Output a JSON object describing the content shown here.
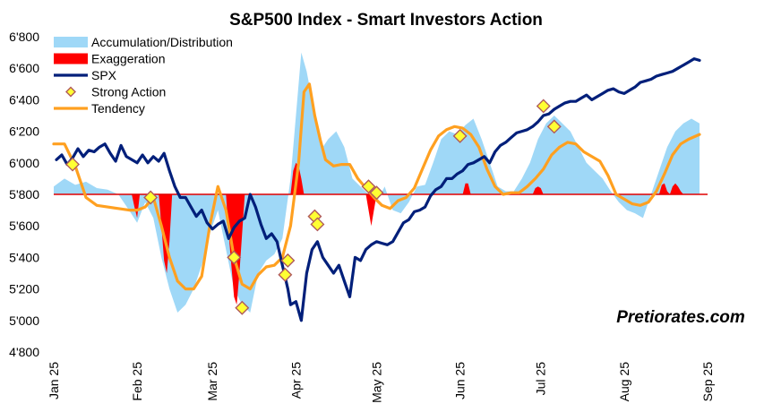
{
  "chart_data": {
    "type": "line",
    "title": "S&P500 Index - Smart Investors Action",
    "ylim": [
      4800,
      6800
    ],
    "y_ticks": [
      "4'800",
      "5'000",
      "5'200",
      "5'400",
      "5'600",
      "5'800",
      "6'000",
      "6'200",
      "6'400",
      "6'600",
      "6'800"
    ],
    "y_tick_values": [
      4800,
      5000,
      5200,
      5400,
      5600,
      5800,
      6000,
      6200,
      6400,
      6600,
      6800
    ],
    "x_ticks": [
      "Jan 25",
      "Feb 25",
      "Mar 25",
      "Apr 25",
      "May 25",
      "Jun 25",
      "Jul 25",
      "Aug 25",
      "Sep 25"
    ],
    "x_tick_days": [
      0,
      31,
      59,
      90,
      120,
      151,
      181,
      212,
      243
    ],
    "x_domain_days": [
      0,
      243
    ],
    "reference_level": 5800,
    "watermark": "Pretiorates.com",
    "colors": {
      "accumulation": "#9fd8f7",
      "exaggeration": "#ff0000",
      "spx": "#001f7a",
      "tendency": "#ffa020",
      "strong_action_fill": "#ffff33",
      "strong_action_stroke": "#b05a5a",
      "reference_line": "#e00000"
    },
    "legend": [
      {
        "key": "accumulation",
        "label": "Accumulation/Distribution"
      },
      {
        "key": "exaggeration",
        "label": "Exaggeration"
      },
      {
        "key": "spx",
        "label": "SPX"
      },
      {
        "key": "strong_action",
        "label": "Strong Action"
      },
      {
        "key": "tendency",
        "label": "Tendency"
      }
    ],
    "series": [
      {
        "name": "SPX",
        "x": [
          1,
          3,
          5,
          7,
          9,
          11,
          13,
          15,
          17,
          19,
          21,
          23,
          25,
          27,
          29,
          31,
          33,
          35,
          37,
          39,
          41,
          43,
          45,
          47,
          49,
          51,
          53,
          55,
          57,
          59,
          61,
          63,
          65,
          67,
          69,
          70,
          71,
          73,
          75,
          77,
          79,
          81,
          83,
          85,
          87,
          88,
          90,
          92,
          94,
          96,
          98,
          100,
          102,
          104,
          106,
          108,
          110,
          112,
          114,
          116,
          118,
          120,
          122,
          124,
          126,
          128,
          130,
          132,
          134,
          136,
          138,
          140,
          142,
          144,
          146,
          148,
          150,
          152,
          154,
          156,
          158,
          160,
          162,
          164,
          166,
          168,
          170,
          172,
          174,
          176,
          178,
          180,
          182,
          184,
          186,
          188,
          190,
          192,
          194,
          196,
          198,
          200,
          202,
          204,
          206,
          208,
          210,
          212,
          214,
          216,
          218,
          220,
          222,
          224,
          226,
          228,
          230,
          232,
          234,
          236,
          238,
          240
        ],
        "values": [
          6020,
          6050,
          5990,
          6030,
          6090,
          6040,
          6080,
          6070,
          6100,
          6120,
          6060,
          6010,
          6110,
          6040,
          6020,
          6000,
          6050,
          6000,
          6040,
          6010,
          6060,
          5950,
          5850,
          5780,
          5780,
          5720,
          5660,
          5700,
          5620,
          5580,
          5610,
          5630,
          5520,
          5590,
          5630,
          5640,
          5650,
          5800,
          5720,
          5610,
          5520,
          5550,
          5500,
          5350,
          5200,
          5100,
          5120,
          5000,
          5300,
          5450,
          5500,
          5400,
          5350,
          5300,
          5350,
          5250,
          5150,
          5400,
          5380,
          5450,
          5480,
          5500,
          5490,
          5480,
          5500,
          5560,
          5620,
          5640,
          5690,
          5700,
          5720,
          5790,
          5830,
          5850,
          5900,
          5900,
          5930,
          5950,
          5990,
          6000,
          6020,
          6040,
          6000,
          6070,
          6110,
          6130,
          6160,
          6190,
          6200,
          6210,
          6230,
          6260,
          6300,
          6310,
          6340,
          6360,
          6380,
          6390,
          6390,
          6410,
          6430,
          6400,
          6420,
          6440,
          6460,
          6470,
          6450,
          6440,
          6460,
          6480,
          6510,
          6520,
          6530,
          6550,
          6560,
          6570,
          6580,
          6600,
          6620,
          6640,
          6660,
          6650
        ]
      },
      {
        "name": "Tendency",
        "x": [
          0,
          4,
          8,
          12,
          16,
          20,
          24,
          28,
          31,
          34,
          37,
          40,
          43,
          46,
          49,
          52,
          55,
          58,
          61,
          64,
          67,
          70,
          73,
          76,
          79,
          82,
          85,
          88,
          91,
          93,
          95,
          97,
          99,
          101,
          104,
          107,
          110,
          113,
          116,
          119,
          122,
          125,
          128,
          131,
          134,
          137,
          140,
          143,
          146,
          149,
          152,
          155,
          158,
          161,
          164,
          167,
          170,
          173,
          176,
          179,
          182,
          185,
          188,
          191,
          194,
          197,
          200,
          203,
          206,
          209,
          212,
          215,
          218,
          221,
          224,
          227,
          230,
          233,
          236,
          240
        ],
        "values": [
          6120,
          6120,
          5980,
          5780,
          5730,
          5720,
          5710,
          5700,
          5700,
          5720,
          5780,
          5600,
          5400,
          5250,
          5200,
          5200,
          5280,
          5600,
          5850,
          5700,
          5400,
          5230,
          5200,
          5290,
          5340,
          5350,
          5400,
          5600,
          6000,
          6450,
          6500,
          6300,
          6150,
          6020,
          5980,
          5990,
          5990,
          5900,
          5840,
          5780,
          5730,
          5710,
          5760,
          5780,
          5840,
          5960,
          6080,
          6170,
          6210,
          6230,
          6220,
          6180,
          6100,
          5960,
          5850,
          5800,
          5810,
          5810,
          5850,
          5900,
          5960,
          6050,
          6100,
          6130,
          6120,
          6070,
          6040,
          6010,
          5920,
          5800,
          5770,
          5740,
          5730,
          5750,
          5820,
          5930,
          6050,
          6120,
          6150,
          6180
        ]
      },
      {
        "name": "Accumulation/Distribution",
        "x": [
          0,
          4,
          8,
          12,
          16,
          20,
          24,
          28,
          31,
          34,
          37,
          40,
          43,
          46,
          49,
          52,
          55,
          58,
          61,
          64,
          67,
          70,
          73,
          76,
          79,
          82,
          85,
          88,
          90,
          92,
          94,
          96,
          98,
          100,
          102,
          105,
          108,
          111,
          114,
          117,
          120,
          123,
          126,
          129,
          132,
          135,
          138,
          141,
          144,
          147,
          150,
          153,
          156,
          159,
          162,
          165,
          168,
          171,
          174,
          177,
          180,
          183,
          186,
          189,
          192,
          195,
          198,
          201,
          204,
          207,
          210,
          213,
          216,
          219,
          222,
          225,
          228,
          231,
          234,
          237,
          240
        ],
        "values": [
          5850,
          5900,
          5860,
          5880,
          5840,
          5830,
          5800,
          5700,
          5620,
          5750,
          5650,
          5400,
          5200,
          5050,
          5100,
          5200,
          5350,
          5550,
          5700,
          5450,
          5200,
          5100,
          5050,
          5300,
          5380,
          5420,
          5520,
          5900,
          6300,
          6700,
          6580,
          6400,
          6250,
          6100,
          6150,
          6200,
          6100,
          5900,
          5850,
          5800,
          5750,
          5850,
          5700,
          5680,
          5750,
          5850,
          5860,
          6000,
          6150,
          6200,
          6180,
          6240,
          6280,
          6150,
          6000,
          5850,
          5820,
          5820,
          5900,
          6000,
          6150,
          6250,
          6300,
          6250,
          6200,
          6100,
          6000,
          5950,
          5900,
          5820,
          5750,
          5700,
          5680,
          5650,
          5800,
          5950,
          6100,
          6200,
          6250,
          6280,
          6250
        ]
      },
      {
        "name": "Exaggeration",
        "x": [
          0,
          29,
          30,
          31,
          32,
          39,
          40,
          41,
          42,
          43,
          44,
          64,
          65,
          66,
          67,
          68,
          69,
          70,
          71,
          88,
          89,
          90,
          91,
          92,
          93,
          116,
          117,
          118,
          119,
          120,
          152,
          153,
          154,
          155,
          178,
          179,
          180,
          181,
          182,
          225,
          226,
          227,
          228,
          229,
          230,
          231,
          232,
          233,
          234,
          240
        ],
        "values": [
          5800,
          5800,
          5720,
          5650,
          5800,
          5800,
          5600,
          5380,
          5300,
          5500,
          5800,
          5800,
          5550,
          5350,
          5150,
          5100,
          5300,
          5550,
          5800,
          5800,
          5950,
          6000,
          5980,
          5900,
          5800,
          5800,
          5700,
          5600,
          5700,
          5800,
          5800,
          5870,
          5870,
          5800,
          5800,
          5840,
          5850,
          5840,
          5800,
          5800,
          5860,
          5870,
          5820,
          5800,
          5850,
          5870,
          5850,
          5820,
          5800,
          5800
        ]
      }
    ],
    "strong_action_points": [
      {
        "x": 7,
        "y": 5990
      },
      {
        "x": 36,
        "y": 5780
      },
      {
        "x": 67,
        "y": 5400
      },
      {
        "x": 70,
        "y": 5080
      },
      {
        "x": 86,
        "y": 5290
      },
      {
        "x": 87,
        "y": 5380
      },
      {
        "x": 97,
        "y": 5660
      },
      {
        "x": 98,
        "y": 5610
      },
      {
        "x": 117,
        "y": 5850
      },
      {
        "x": 120,
        "y": 5810
      },
      {
        "x": 151,
        "y": 6170
      },
      {
        "x": 182,
        "y": 6360
      },
      {
        "x": 186,
        "y": 6230
      }
    ]
  }
}
